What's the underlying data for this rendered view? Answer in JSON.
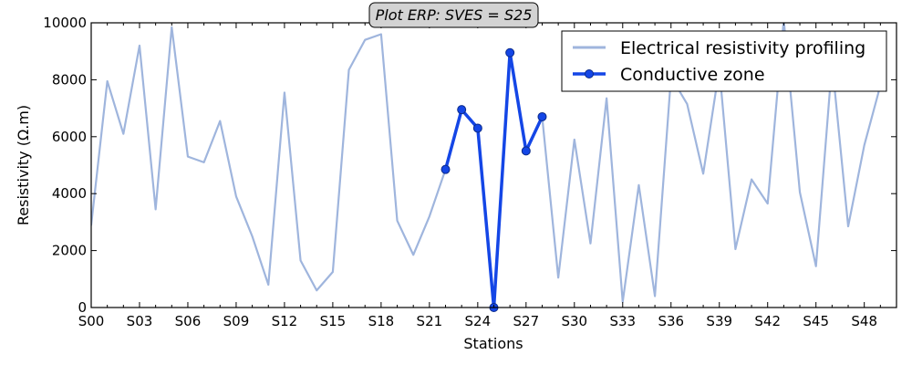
{
  "chart_data": {
    "type": "line",
    "title": "Plot ERP: SVES = S25",
    "xlabel": "Stations",
    "ylabel": "Resistivity (Ω.m)",
    "ylim": [
      0,
      10000
    ],
    "yticks": [
      0,
      2000,
      4000,
      6000,
      8000,
      10000
    ],
    "xticks": [
      "S00",
      "S03",
      "S06",
      "S09",
      "S12",
      "S15",
      "S18",
      "S21",
      "S24",
      "S27",
      "S30",
      "S33",
      "S36",
      "S39",
      "S42",
      "S45",
      "S48"
    ],
    "grid": false,
    "legend_position": "top-right",
    "series": [
      {
        "name": "Electrical resistivity profiling",
        "color": "#9fb5dd",
        "x": [
          0,
          1,
          2,
          3,
          4,
          5,
          6,
          7,
          8,
          9,
          10,
          11,
          12,
          13,
          14,
          15,
          16,
          17,
          18,
          19,
          20,
          21,
          22,
          23,
          24,
          25,
          26,
          27,
          28,
          29,
          30,
          31,
          32,
          33,
          34,
          35,
          36,
          37,
          38,
          39,
          40,
          41,
          42,
          43,
          44,
          45,
          46,
          47,
          48,
          49
        ],
        "values": [
          2900,
          7950,
          6100,
          9200,
          3450,
          9850,
          5300,
          5100,
          6550,
          3900,
          2500,
          800,
          7550,
          1650,
          600,
          1250,
          8350,
          9400,
          9600,
          3050,
          1850,
          3200,
          4850,
          6950,
          6300,
          0,
          8950,
          5500,
          6700,
          1050,
          5900,
          2250,
          7350,
          200,
          4300,
          400,
          8100,
          7150,
          4700,
          8400,
          2050,
          4500,
          3650,
          10100,
          4050,
          1450,
          8600,
          2850,
          5700,
          7800
        ]
      },
      {
        "name": "Conductive zone",
        "color": "#1446e6",
        "x": [
          22,
          23,
          24,
          25,
          26,
          27,
          28
        ],
        "values": [
          4850,
          6950,
          6300,
          0,
          8950,
          5500,
          6700
        ]
      }
    ]
  }
}
